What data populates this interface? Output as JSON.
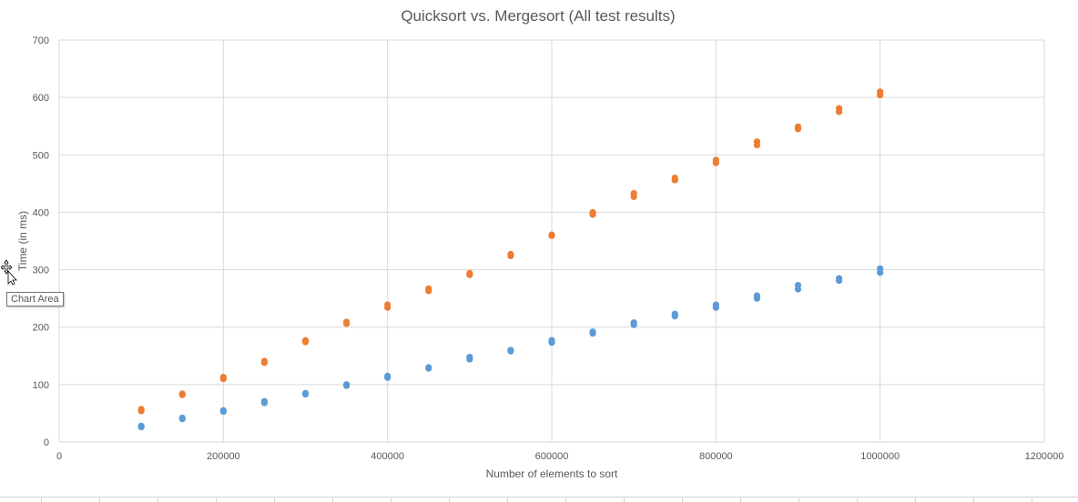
{
  "window": {
    "tooltip_text": "Chart Area",
    "cursor_icon": "move-cursor-icon"
  },
  "colors": {
    "series_quicksort": "#5b9bd5",
    "series_mergesort": "#ed7d31",
    "gridline": "#d9d9d9",
    "text": "#595959"
  },
  "chart_data": {
    "type": "scatter",
    "title": "Quicksort vs. Mergesort (All test results)",
    "xlabel": "Number of elements to sort",
    "ylabel": "Time (in ms)",
    "xlim": [
      0,
      1200000
    ],
    "ylim": [
      0,
      700
    ],
    "x_ticks": [
      "0",
      "200000",
      "400000",
      "600000",
      "800000",
      "1000000",
      "1200000"
    ],
    "y_ticks": [
      "0",
      "100",
      "200",
      "300",
      "400",
      "500",
      "600",
      "700"
    ],
    "grid": true,
    "legend": "none",
    "series": [
      {
        "color": "#5b9bd5",
        "points": [
          [
            100000,
            26
          ],
          [
            100000,
            28
          ],
          [
            150000,
            40
          ],
          [
            150000,
            42
          ],
          [
            200000,
            53
          ],
          [
            200000,
            55
          ],
          [
            250000,
            68
          ],
          [
            250000,
            71
          ],
          [
            300000,
            83
          ],
          [
            300000,
            85
          ],
          [
            350000,
            98
          ],
          [
            350000,
            100
          ],
          [
            400000,
            112
          ],
          [
            400000,
            115
          ],
          [
            450000,
            128
          ],
          [
            450000,
            130
          ],
          [
            500000,
            144
          ],
          [
            500000,
            148
          ],
          [
            550000,
            158
          ],
          [
            550000,
            160
          ],
          [
            600000,
            173
          ],
          [
            600000,
            177
          ],
          [
            650000,
            189
          ],
          [
            650000,
            192
          ],
          [
            700000,
            204
          ],
          [
            700000,
            208
          ],
          [
            750000,
            219
          ],
          [
            750000,
            223
          ],
          [
            800000,
            234
          ],
          [
            800000,
            239
          ],
          [
            850000,
            250
          ],
          [
            850000,
            255
          ],
          [
            900000,
            266
          ],
          [
            900000,
            273
          ],
          [
            950000,
            281
          ],
          [
            950000,
            285
          ],
          [
            1000000,
            295
          ],
          [
            1000000,
            302
          ]
        ]
      },
      {
        "color": "#ed7d31",
        "points": [
          [
            100000,
            54
          ],
          [
            100000,
            57
          ],
          [
            150000,
            82
          ],
          [
            150000,
            84
          ],
          [
            200000,
            110
          ],
          [
            200000,
            113
          ],
          [
            250000,
            138
          ],
          [
            250000,
            141
          ],
          [
            300000,
            174
          ],
          [
            300000,
            177
          ],
          [
            350000,
            206
          ],
          [
            350000,
            209
          ],
          [
            400000,
            234
          ],
          [
            400000,
            239
          ],
          [
            450000,
            263
          ],
          [
            450000,
            267
          ],
          [
            500000,
            291
          ],
          [
            500000,
            294
          ],
          [
            550000,
            324
          ],
          [
            550000,
            327
          ],
          [
            600000,
            359
          ],
          [
            600000,
            361
          ],
          [
            650000,
            396
          ],
          [
            650000,
            400
          ],
          [
            700000,
            427
          ],
          [
            700000,
            433
          ],
          [
            750000,
            456
          ],
          [
            750000,
            460
          ],
          [
            800000,
            486
          ],
          [
            800000,
            491
          ],
          [
            850000,
            517
          ],
          [
            850000,
            523
          ],
          [
            900000,
            545
          ],
          [
            900000,
            549
          ],
          [
            950000,
            575
          ],
          [
            950000,
            581
          ],
          [
            1000000,
            604
          ],
          [
            1000000,
            610
          ]
        ]
      }
    ]
  }
}
